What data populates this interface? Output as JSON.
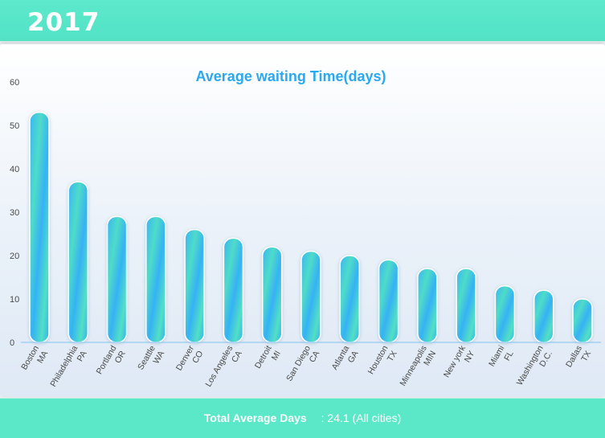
{
  "header": {
    "year": "2017"
  },
  "chart_data": {
    "type": "bar",
    "title": "Average waiting Time(days)",
    "xlabel": "",
    "ylabel": "",
    "ylim": [
      0,
      60
    ],
    "yticks": [
      0,
      10,
      20,
      30,
      40,
      50,
      60
    ],
    "grid": false,
    "categories": [
      [
        "Boston",
        "MA"
      ],
      [
        "Philadelphia",
        "PA"
      ],
      [
        "Portland",
        "OR"
      ],
      [
        "Seattle",
        "WA"
      ],
      [
        "Denver",
        "CO"
      ],
      [
        "Los Angeles",
        "CA"
      ],
      [
        "Detroit",
        "MI"
      ],
      [
        "San Diego",
        "CA"
      ],
      [
        "Atlanta",
        "GA"
      ],
      [
        "Houston",
        "TX"
      ],
      [
        "Minneapolis",
        "MIN"
      ],
      [
        "New york",
        "NY"
      ],
      [
        "Miami",
        "FL"
      ],
      [
        "Washington",
        "D.C."
      ],
      [
        "Dallas",
        "TX"
      ]
    ],
    "values": [
      53,
      37,
      29,
      29,
      26,
      24,
      22,
      21,
      20,
      19,
      17,
      17,
      13,
      12,
      10
    ],
    "colors": {
      "bar_primary": "#35b4f5",
      "bar_secondary": "#4fe0c6",
      "axis": "#7fc3f0",
      "title": "#2aa8f0"
    }
  },
  "footer": {
    "label": "Total Average Days",
    "value": ": 24.1 (All cities)"
  }
}
